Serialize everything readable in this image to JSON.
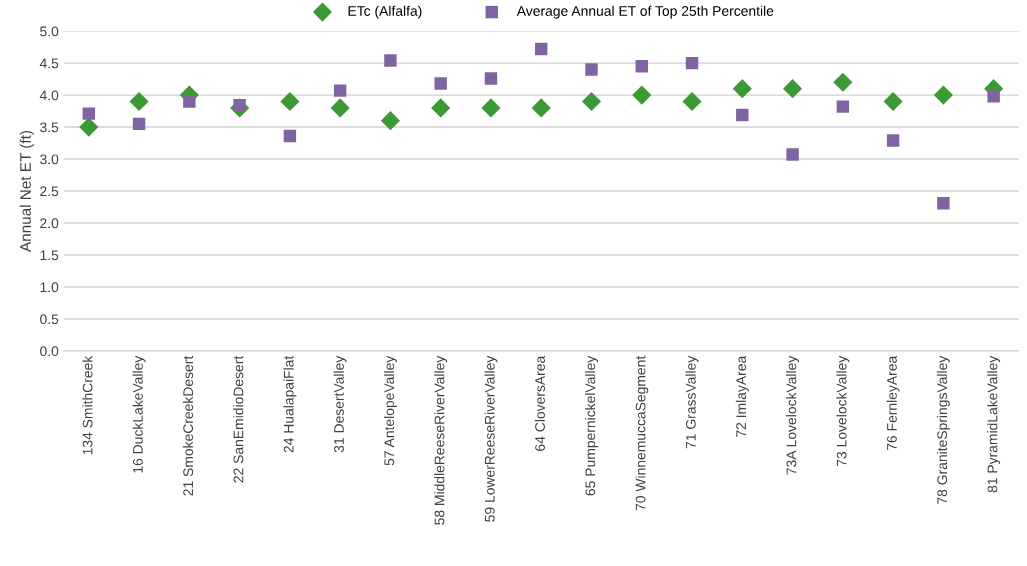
{
  "chart_data": {
    "type": "scatter",
    "ylabel": "Annual Net ET (ft)",
    "categories": [
      "134 SmithCreek",
      "16 DuckLakeValley",
      "21 SmokeCreekDesert",
      "22 SanEmidioDesert",
      "24 HualapaiFlat",
      "31 DesertValley",
      "57 AntelopeValley",
      "58 MiddleReeseRiverValley",
      "59 LowerReeseRiverValley",
      "64 CloversArea",
      "65 PumpernickelValley",
      "70 WinnemuccaSegment",
      "71 GrassValley",
      "72 ImlayArea",
      "73A LovelockValley",
      "73 LovelockValley",
      "76 FernleyArea",
      "78 GraniteSpringsValley",
      "81 PyramidLakeValley"
    ],
    "series": [
      {
        "name": "ETc (Alfalfa)",
        "color": "#3c9a35",
        "marker": "diamond",
        "values": [
          3.5,
          3.9,
          4.0,
          3.8,
          3.9,
          3.8,
          3.6,
          3.8,
          3.8,
          3.8,
          3.9,
          4.0,
          3.9,
          4.1,
          4.1,
          4.2,
          3.9,
          4.0,
          4.1
        ]
      },
      {
        "name": "Average Annual ET of Top 25th Percentile",
        "color": "#8064a2",
        "marker": "square",
        "values": [
          3.71,
          3.55,
          3.9,
          3.84,
          3.36,
          4.07,
          4.54,
          4.18,
          4.26,
          4.72,
          4.4,
          4.45,
          4.5,
          3.69,
          3.07,
          3.82,
          3.29,
          2.31,
          3.98
        ]
      }
    ],
    "ylim": [
      0,
      5
    ],
    "yticks": [
      {
        "value": 0,
        "label": "0.0"
      },
      {
        "value": 0.5,
        "label": "0.5"
      },
      {
        "value": 1,
        "label": "1.0"
      },
      {
        "value": 1.5,
        "label": "1.5"
      },
      {
        "value": 2,
        "label": "2.0"
      },
      {
        "value": 2.5,
        "label": "2.5"
      },
      {
        "value": 3,
        "label": "3.0"
      },
      {
        "value": 3.5,
        "label": "3.5"
      },
      {
        "value": 4,
        "label": "4.0"
      },
      {
        "value": 4.5,
        "label": "4.5"
      },
      {
        "value": 5,
        "label": "5.0"
      }
    ],
    "grid": "y",
    "legend": "top"
  }
}
